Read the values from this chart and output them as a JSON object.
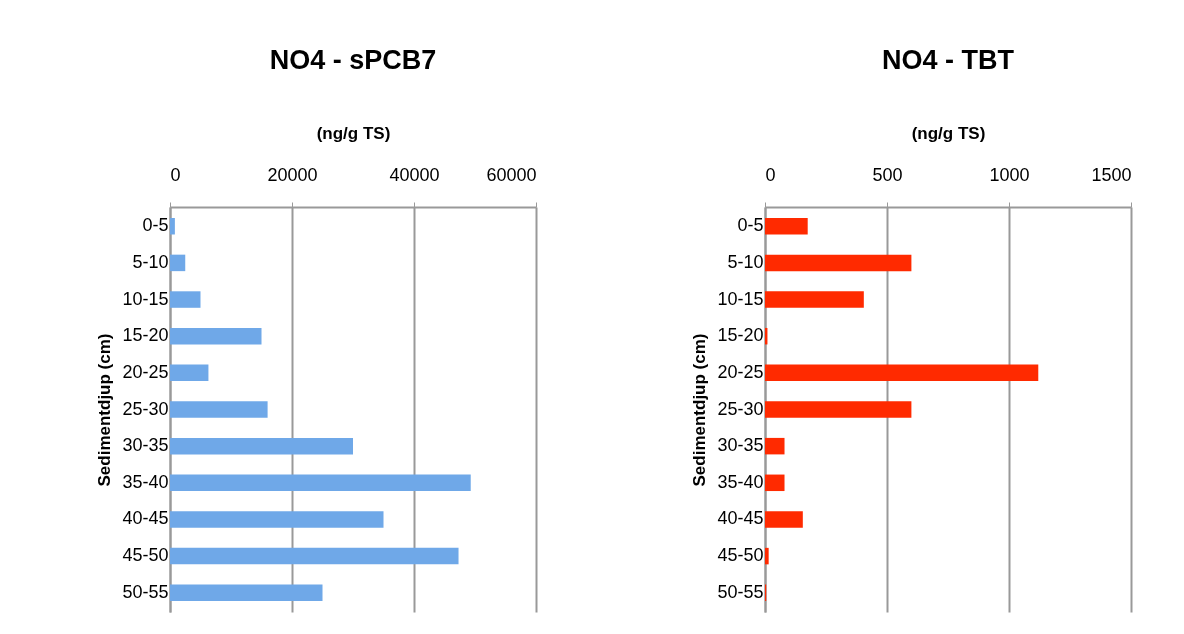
{
  "chart_data": [
    {
      "type": "bar",
      "orientation": "horizontal",
      "title": "NO4 - sPCB7",
      "xlabel": "(ng/g TS)",
      "ylabel": "Sedimentdjup (cm)",
      "categories": [
        "0-5",
        "5-10",
        "10-15",
        "15-20",
        "20-25",
        "25-30",
        "30-35",
        "35-40",
        "40-45",
        "45-50",
        "50-55"
      ],
      "values": [
        800,
        2500,
        5000,
        15000,
        6300,
        16000,
        30000,
        49300,
        35000,
        47300,
        25000
      ],
      "color": "#6fa8e8",
      "xlim": [
        0,
        60000
      ],
      "xticks": [
        0,
        20000,
        40000,
        60000
      ],
      "grid": "x"
    },
    {
      "type": "bar",
      "orientation": "horizontal",
      "title": "NO4 - TBT",
      "xlabel": "(ng/g TS)",
      "ylabel": "Sedimentdjup (cm)",
      "categories": [
        "0-5",
        "5-10",
        "10-15",
        "15-20",
        "20-25",
        "25-30",
        "30-35",
        "35-40",
        "40-45",
        "45-50",
        "50-55"
      ],
      "values": [
        175,
        600,
        405,
        10,
        1120,
        600,
        80,
        80,
        155,
        15,
        5
      ],
      "color": "#ff2a00",
      "xlim": [
        0,
        1500
      ],
      "xticks": [
        0,
        500,
        1000,
        1500
      ],
      "grid": "x"
    }
  ]
}
